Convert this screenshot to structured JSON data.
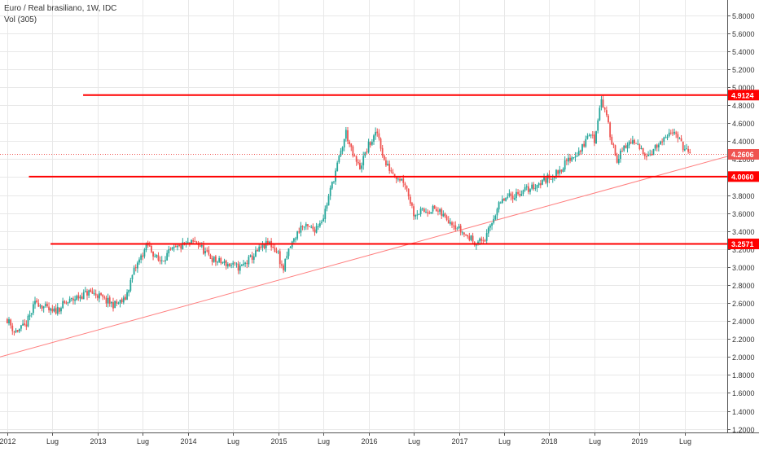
{
  "header": {
    "symbol_title": "Euro / Real brasiliano, 1W, IDC",
    "indicator": "Vol (305)"
  },
  "colors": {
    "up": "#26a69a",
    "down": "#ef5350",
    "level_line": "#ff0000",
    "trend_line": "#ff7f7f",
    "last_price": "#ef5350",
    "grid": "#e8e8e8"
  },
  "chart_data": {
    "type": "candlestick",
    "instrument": "EUR/BRL",
    "interval": "1W",
    "source": "IDC",
    "x_tick_labels": [
      "2012",
      "Lug",
      "2013",
      "Lug",
      "2014",
      "Lug",
      "2015",
      "Lug",
      "2016",
      "Lug",
      "2017",
      "Lug",
      "2018",
      "Lug",
      "2019",
      "Lug"
    ],
    "y_tick_labels": [
      "1.2000",
      "1.4000",
      "1.6000",
      "1.8000",
      "2.0000",
      "2.2000",
      "2.4000",
      "2.6000",
      "2.8000",
      "3.0000",
      "3.2000",
      "3.4000",
      "3.6000",
      "3.8000",
      "4.0000",
      "4.2000",
      "4.4000",
      "4.6000",
      "4.8000",
      "5.0000",
      "5.2000",
      "5.4000",
      "5.6000",
      "5.8000"
    ],
    "ylim": [
      1.16,
      5.97
    ],
    "xlim": [
      2011.92,
      2019.97
    ],
    "horizontal_levels": [
      {
        "label": "4.9124",
        "value": 4.9124,
        "x_start": 2012.84
      },
      {
        "label": "4.0060",
        "value": 4.006,
        "x_start": 2012.24
      },
      {
        "label": "3.2571",
        "value": 3.2571,
        "x_start": 2012.48
      }
    ],
    "trend_line": {
      "points": [
        [
          2011.92,
          2.0
        ],
        [
          2019.97,
          4.23
        ]
      ]
    },
    "last_price": {
      "label": "4.2606",
      "value": 4.2606
    },
    "price_path": [
      [
        2012.0,
        2.42
      ],
      [
        2012.08,
        2.28
      ],
      [
        2012.2,
        2.34
      ],
      [
        2012.32,
        2.62
      ],
      [
        2012.4,
        2.56
      ],
      [
        2012.5,
        2.49
      ],
      [
        2012.62,
        2.58
      ],
      [
        2012.75,
        2.65
      ],
      [
        2012.9,
        2.72
      ],
      [
        2013.0,
        2.69
      ],
      [
        2013.08,
        2.63
      ],
      [
        2013.18,
        2.58
      ],
      [
        2013.3,
        2.63
      ],
      [
        2013.4,
        2.95
      ],
      [
        2013.55,
        3.25
      ],
      [
        2013.68,
        3.06
      ],
      [
        2013.82,
        3.18
      ],
      [
        2013.95,
        3.24
      ],
      [
        2014.1,
        3.28
      ],
      [
        2014.2,
        3.15
      ],
      [
        2014.3,
        3.07
      ],
      [
        2014.45,
        3.03
      ],
      [
        2014.58,
        2.99
      ],
      [
        2014.7,
        3.1
      ],
      [
        2014.8,
        3.2
      ],
      [
        2014.9,
        3.27
      ],
      [
        2015.0,
        3.15
      ],
      [
        2015.05,
        2.95
      ],
      [
        2015.12,
        3.2
      ],
      [
        2015.25,
        3.45
      ],
      [
        2015.4,
        3.42
      ],
      [
        2015.5,
        3.56
      ],
      [
        2015.6,
        3.94
      ],
      [
        2015.7,
        4.3
      ],
      [
        2015.75,
        4.5
      ],
      [
        2015.82,
        4.25
      ],
      [
        2015.9,
        4.1
      ],
      [
        2016.0,
        4.35
      ],
      [
        2016.1,
        4.5
      ],
      [
        2016.18,
        4.15
      ],
      [
        2016.3,
        4.02
      ],
      [
        2016.4,
        3.95
      ],
      [
        2016.5,
        3.6
      ],
      [
        2016.62,
        3.62
      ],
      [
        2016.72,
        3.65
      ],
      [
        2016.85,
        3.55
      ],
      [
        2016.93,
        3.5
      ],
      [
        2017.0,
        3.42
      ],
      [
        2017.08,
        3.35
      ],
      [
        2017.2,
        3.27
      ],
      [
        2017.3,
        3.32
      ],
      [
        2017.42,
        3.65
      ],
      [
        2017.5,
        3.75
      ],
      [
        2017.65,
        3.82
      ],
      [
        2017.8,
        3.88
      ],
      [
        2017.95,
        3.97
      ],
      [
        2018.08,
        4.04
      ],
      [
        2018.22,
        4.2
      ],
      [
        2018.35,
        4.3
      ],
      [
        2018.45,
        4.5
      ],
      [
        2018.5,
        4.4
      ],
      [
        2018.57,
        4.88
      ],
      [
        2018.62,
        4.72
      ],
      [
        2018.68,
        4.45
      ],
      [
        2018.75,
        4.2
      ],
      [
        2018.82,
        4.3
      ],
      [
        2018.9,
        4.4
      ],
      [
        2019.0,
        4.32
      ],
      [
        2019.1,
        4.25
      ],
      [
        2019.2,
        4.35
      ],
      [
        2019.3,
        4.42
      ],
      [
        2019.38,
        4.55
      ],
      [
        2019.45,
        4.38
      ],
      [
        2019.52,
        4.28
      ],
      [
        2019.56,
        4.26
      ]
    ]
  }
}
